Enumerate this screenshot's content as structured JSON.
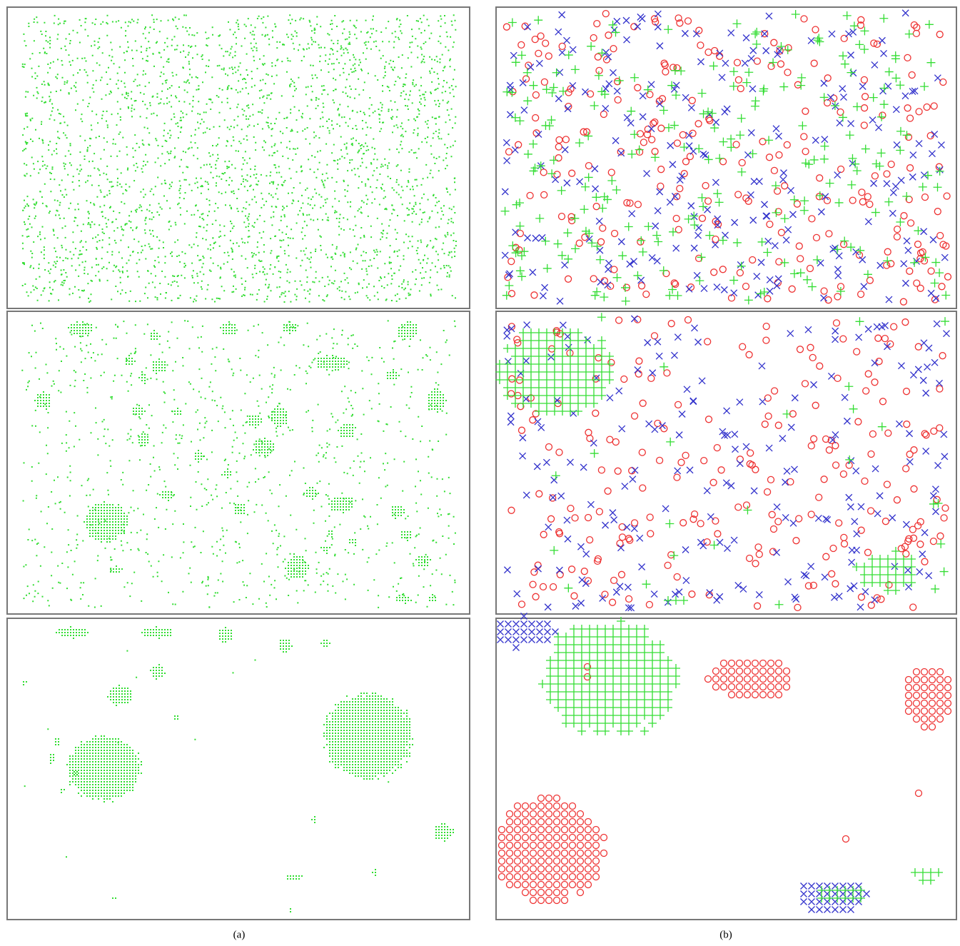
{
  "panel_labels": [
    "(a)",
    "(b)"
  ]
}
